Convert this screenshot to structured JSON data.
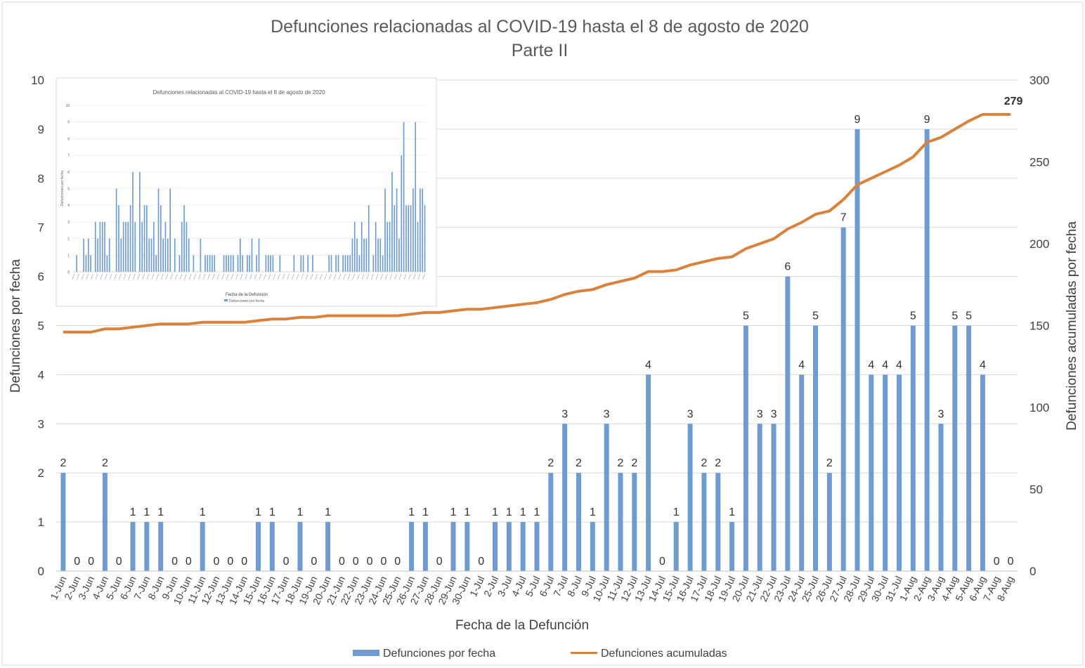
{
  "chart_data": {
    "type": "bar+line",
    "title": "Defunciones relacionadas al COVID-19 hasta el 8 de agosto de 2020",
    "subtitle": "Parte II",
    "xlabel": "Fecha de la Defunción",
    "ylabel_left": "Defunciones por fecha",
    "ylabel_right": "Defunciones acumuladas por fecha",
    "ylim_left": [
      0,
      10
    ],
    "ylim_right": [
      0,
      300
    ],
    "yticks_left": [
      "0",
      "1",
      "2",
      "3",
      "4",
      "5",
      "6",
      "7",
      "8",
      "9",
      "10"
    ],
    "yticks_right": [
      "0",
      "50",
      "100",
      "150",
      "200",
      "250",
      "300"
    ],
    "categories": [
      "1-Jun",
      "2-Jun",
      "3-Jun",
      "4-Jun",
      "5-Jun",
      "6-Jun",
      "7-Jun",
      "8-Jun",
      "9-Jun",
      "10-Jun",
      "11-Jun",
      "12-Jun",
      "13-Jun",
      "14-Jun",
      "15-Jun",
      "16-Jun",
      "17-Jun",
      "18-Jun",
      "19-Jun",
      "20-Jun",
      "21-Jun",
      "22-Jun",
      "23-Jun",
      "24-Jun",
      "25-Jun",
      "26-Jun",
      "27-Jun",
      "28-Jun",
      "29-Jun",
      "30-Jun",
      "1-Jul",
      "2-Jul",
      "3-Jul",
      "4-Jul",
      "5-Jul",
      "6-Jul",
      "7-Jul",
      "8-Jul",
      "9-Jul",
      "10-Jul",
      "11-Jul",
      "12-Jul",
      "13-Jul",
      "14-Jul",
      "15-Jul",
      "16-Jul",
      "17-Jul",
      "18-Jul",
      "19-Jul",
      "20-Jul",
      "21-Jul",
      "22-Jul",
      "23-Jul",
      "24-Jul",
      "25-Jul",
      "26-Jul",
      "27-Jul",
      "28-Jul",
      "29-Jul",
      "30-Jul",
      "31-Jul",
      "1-Aug",
      "2-Aug",
      "3-Aug",
      "4-Aug",
      "5-Aug",
      "6-Aug",
      "7-Aug",
      "8-Aug"
    ],
    "series": [
      {
        "name": "Defunciones por fecha",
        "type": "bar",
        "axis": "left",
        "color": "#6f9bd1",
        "values": [
          2,
          0,
          0,
          2,
          0,
          1,
          1,
          1,
          0,
          0,
          1,
          0,
          0,
          0,
          1,
          1,
          0,
          1,
          0,
          1,
          0,
          0,
          0,
          0,
          0,
          1,
          1,
          0,
          1,
          1,
          0,
          1,
          1,
          1,
          1,
          2,
          3,
          2,
          1,
          3,
          2,
          2,
          4,
          0,
          1,
          3,
          2,
          2,
          1,
          5,
          3,
          3,
          6,
          4,
          5,
          2,
          7,
          9,
          4,
          4,
          4,
          5,
          9,
          3,
          5,
          5,
          4,
          0,
          0
        ]
      },
      {
        "name": "Defunciones acumuladas",
        "type": "line",
        "axis": "right",
        "color": "#d8823b",
        "values": [
          146,
          146,
          146,
          148,
          148,
          149,
          150,
          151,
          151,
          151,
          152,
          152,
          152,
          152,
          153,
          154,
          154,
          155,
          155,
          156,
          156,
          156,
          156,
          156,
          156,
          157,
          158,
          158,
          159,
          160,
          160,
          161,
          162,
          163,
          164,
          166,
          169,
          171,
          172,
          175,
          177,
          179,
          183,
          183,
          184,
          187,
          189,
          191,
          192,
          197,
          200,
          203,
          209,
          213,
          218,
          220,
          227,
          236,
          240,
          244,
          248,
          253,
          262,
          265,
          270,
          275,
          279,
          279,
          279
        ],
        "end_label": "279"
      }
    ],
    "legend_position": "bottom",
    "inset": {
      "title": "Defunciones relacionadas al COVID-19 hasta el 8 de agosto de 2020",
      "xlabel": "Fecha de la Defunción",
      "ylabel": "Defunciones por fecha",
      "legend": "Defunciones por fecha",
      "yticks": [
        "0",
        "1",
        "2",
        "3",
        "4",
        "5",
        "6",
        "7",
        "8",
        "9",
        "10"
      ],
      "values": [
        0,
        1,
        0,
        0,
        2,
        1,
        2,
        1,
        0,
        3,
        2,
        3,
        3,
        3,
        1,
        2,
        0,
        0,
        5,
        4,
        2,
        3,
        3,
        3,
        4,
        6,
        3,
        0,
        6,
        3,
        4,
        4,
        2,
        2,
        3,
        1,
        5,
        4,
        2,
        3,
        2,
        5,
        0,
        2,
        0,
        1,
        3,
        4,
        3,
        2,
        0,
        1,
        0,
        0,
        2,
        0,
        1,
        1,
        1,
        1,
        1,
        0,
        0,
        0,
        1,
        1,
        1,
        1,
        1,
        0,
        1,
        2,
        1,
        0,
        1,
        1,
        2,
        0,
        1,
        2,
        0,
        0,
        1,
        1,
        1,
        1,
        0,
        0,
        1,
        0,
        0,
        0,
        0,
        0,
        1,
        0,
        0,
        1,
        1,
        0,
        1,
        0,
        1,
        0,
        0,
        0,
        0,
        0,
        0,
        1,
        1,
        0,
        1,
        1,
        0,
        1,
        1,
        1,
        1,
        2,
        3,
        2,
        1,
        3,
        2,
        2,
        4,
        0,
        1,
        3,
        2,
        2,
        1,
        5,
        3,
        3,
        6,
        4,
        5,
        2,
        7,
        9,
        4,
        4,
        4,
        5,
        9,
        3,
        5,
        5,
        4
      ]
    }
  }
}
